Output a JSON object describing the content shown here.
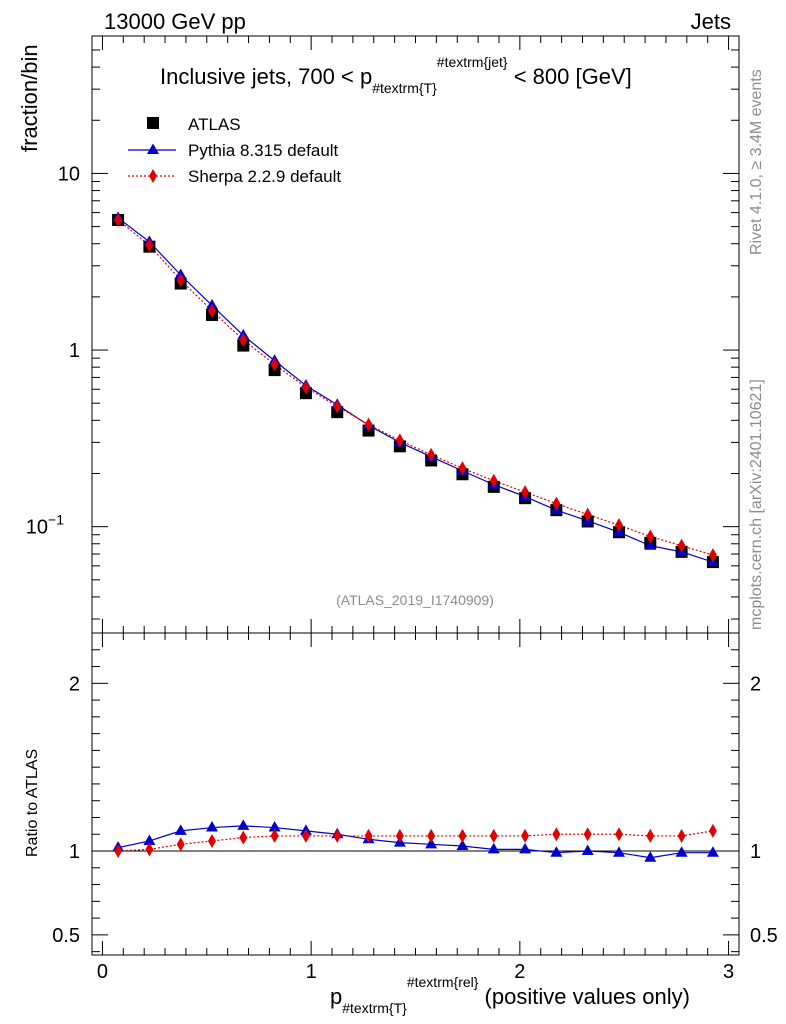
{
  "header": {
    "left": "13000 GeV pp",
    "right": "Jets"
  },
  "side": {
    "rivet": "Rivet 4.1.0, ≥ 3.4M events",
    "mcplots": "mcplots.cern.ch [arXiv:2401.10621]"
  },
  "chart_data": {
    "type": "line",
    "title_parts": {
      "pre": "Inclusive jets, 700 < p",
      "sub": "#textrm{T}",
      "sup": "#textrm{jet}",
      "post": " < 800 [GeV]"
    },
    "ylabel": "fraction/bin",
    "ratio_ylabel": "Ratio to ATLAS",
    "xlabel_parts": {
      "pre": "p",
      "sub": "#textrm{T}",
      "sup": "#textrm{rel}",
      "post": " (positive values only)"
    },
    "watermark": "(ATLAS_2019_I1740909)",
    "yscale": "log",
    "ylim": [
      0.025,
      60
    ],
    "xlim": [
      -0.05,
      3.05
    ],
    "ratio_ylim": [
      0.38,
      2.3
    ],
    "x_ticks": [
      "0",
      "1",
      "2",
      "3"
    ],
    "y_ticks": [
      {
        "value": 10,
        "label": "10"
      },
      {
        "value": 1,
        "label": "1"
      },
      {
        "value": 0.1,
        "label": "10",
        "sup": "−1"
      }
    ],
    "ratio_ticks": [
      {
        "value": 2,
        "label": "2"
      },
      {
        "value": 1,
        "label": "1"
      },
      {
        "value": 0.5,
        "label": "0.5"
      }
    ],
    "x": [
      0.075,
      0.225,
      0.375,
      0.525,
      0.675,
      0.825,
      0.975,
      1.125,
      1.275,
      1.425,
      1.575,
      1.725,
      1.875,
      2.025,
      2.175,
      2.325,
      2.475,
      2.625,
      2.775,
      2.925
    ],
    "series": [
      {
        "name": "ATLAS",
        "color": "#000000",
        "marker": "square",
        "values": [
          5.45,
          3.85,
          2.38,
          1.58,
          1.06,
          0.77,
          0.57,
          0.445,
          0.35,
          0.285,
          0.237,
          0.198,
          0.168,
          0.145,
          0.124,
          0.107,
          0.093,
          0.081,
          0.072,
          0.063
        ]
      },
      {
        "name": "Pythia 8.315 default",
        "color": "#0000cc",
        "marker": "triangle",
        "values": [
          5.6,
          4.1,
          2.66,
          1.79,
          1.21,
          0.87,
          0.63,
          0.49,
          0.375,
          0.3,
          0.249,
          0.207,
          0.173,
          0.148,
          0.124,
          0.108,
          0.093,
          0.078,
          0.072,
          0.063
        ],
        "ratio": [
          1.02,
          1.06,
          1.12,
          1.14,
          1.15,
          1.14,
          1.12,
          1.1,
          1.07,
          1.05,
          1.04,
          1.03,
          1.01,
          1.01,
          0.99,
          1.0,
          0.99,
          0.96,
          0.99,
          0.99
        ]
      },
      {
        "name": "Sherpa 2.2.9 default",
        "color": "#e00000",
        "marker": "diamond",
        "values": [
          5.45,
          3.92,
          2.49,
          1.67,
          1.14,
          0.83,
          0.615,
          0.48,
          0.378,
          0.308,
          0.255,
          0.214,
          0.182,
          0.157,
          0.135,
          0.117,
          0.102,
          0.088,
          0.078,
          0.069
        ],
        "ratio": [
          1.0,
          1.01,
          1.04,
          1.06,
          1.08,
          1.09,
          1.09,
          1.09,
          1.09,
          1.09,
          1.09,
          1.09,
          1.09,
          1.09,
          1.1,
          1.1,
          1.1,
          1.09,
          1.09,
          1.12
        ]
      }
    ]
  }
}
